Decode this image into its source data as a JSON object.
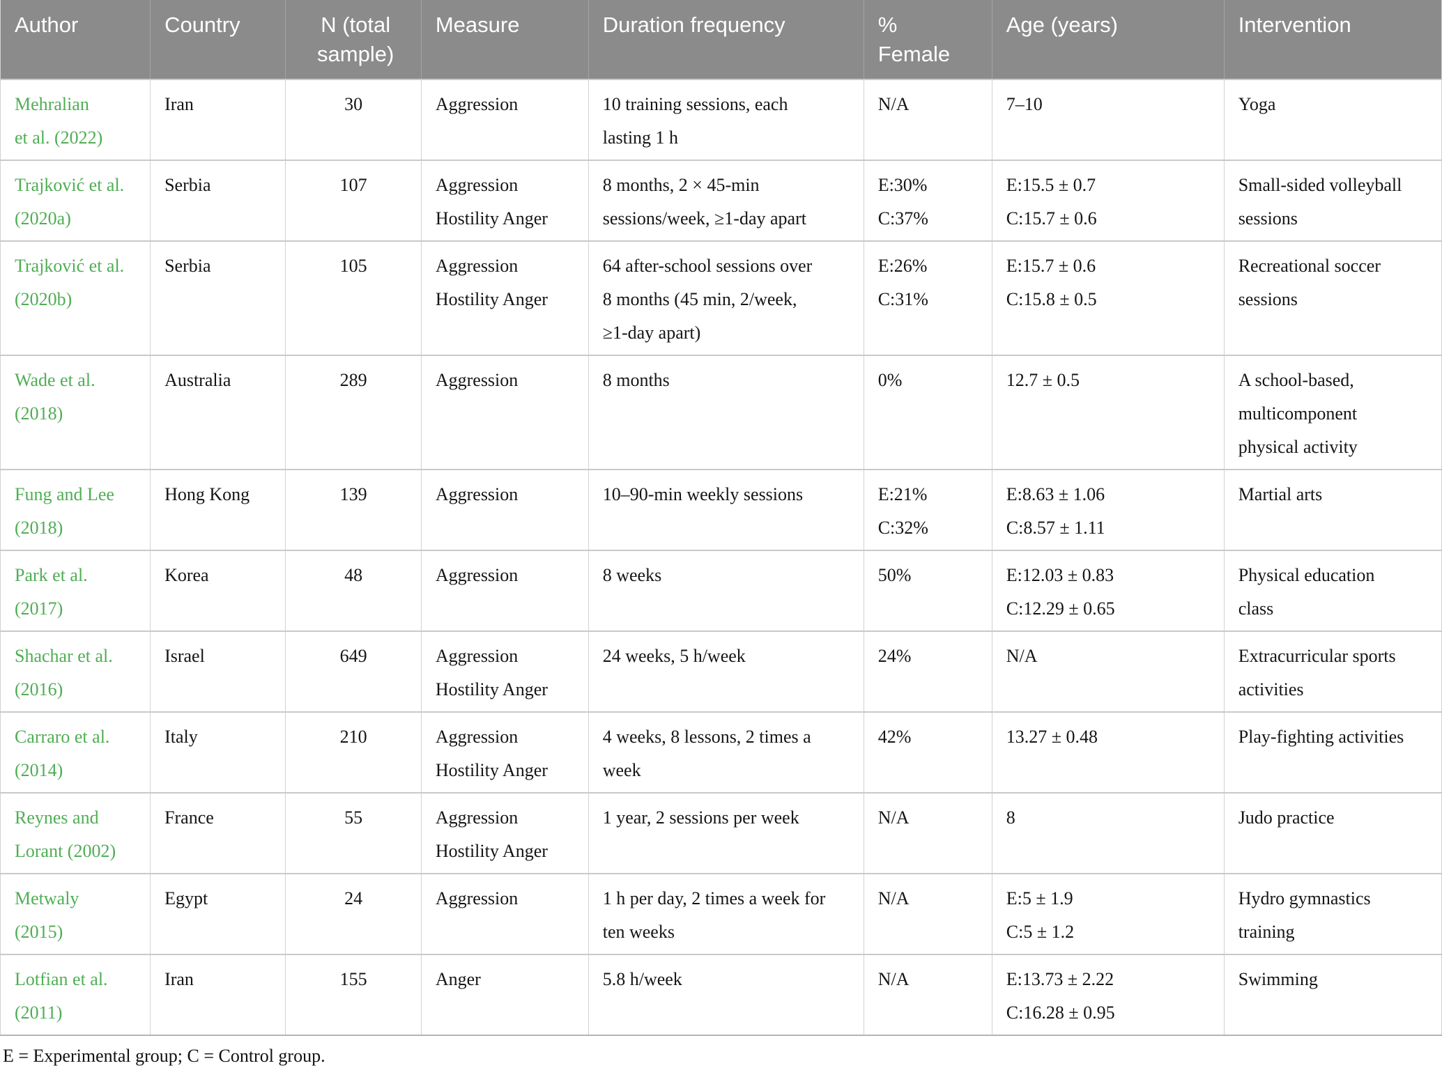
{
  "colors": {
    "header_bg": "#8b8b8b",
    "author_green": "#4fae54"
  },
  "table": {
    "headers": [
      {
        "label": "Author"
      },
      {
        "label": "Country"
      },
      {
        "label": "N (total\nsample)"
      },
      {
        "label": "Measure"
      },
      {
        "label": "Duration frequency"
      },
      {
        "label": "%\nFemale"
      },
      {
        "label": "Age (years)"
      },
      {
        "label": "Intervention"
      }
    ],
    "rows": [
      {
        "author": "Mehralian\net al. (2022)",
        "country": "Iran",
        "n": "30",
        "measure": "Aggression",
        "duration": "10 training sessions, each\nlasting 1 h",
        "female": "N/A",
        "age": "7–10",
        "intervention": "Yoga"
      },
      {
        "author": "Trajković et al.\n(2020a)",
        "country": "Serbia",
        "n": "107",
        "measure": "Aggression\nHostility Anger",
        "duration": "8 months, 2 × 45-min\nsessions/week, ≥1-day apart",
        "female": "E:30%\nC:37%",
        "age": "E:15.5 ± 0.7\nC:15.7 ± 0.6",
        "intervention": "Small-sided volleyball\nsessions"
      },
      {
        "author": "Trajković et al.\n(2020b)",
        "country": "Serbia",
        "n": "105",
        "measure": "Aggression\nHostility Anger",
        "duration": "64 after-school sessions over\n8 months (45 min, 2/week,\n≥1-day apart)",
        "female": "E:26%\nC:31%",
        "age": "E:15.7 ± 0.6\nC:15.8 ± 0.5",
        "intervention": "Recreational soccer\nsessions"
      },
      {
        "author": "Wade et al.\n(2018)",
        "country": "Australia",
        "n": "289",
        "measure": "Aggression",
        "duration": "8 months",
        "female": "0%",
        "age": "12.7 ± 0.5",
        "intervention": "A school-based,\nmulticomponent\nphysical activity"
      },
      {
        "author": "Fung and Lee\n(2018)",
        "country": "Hong Kong",
        "n": "139",
        "measure": "Aggression",
        "duration": "10–90-min weekly sessions",
        "female": "E:21%\nC:32%",
        "age": "E:8.63 ± 1.06\nC:8.57 ± 1.11",
        "intervention": "Martial arts"
      },
      {
        "author": "Park et al.\n(2017)",
        "country": "Korea",
        "n": "48",
        "measure": "Aggression",
        "duration": "8 weeks",
        "female": "50%",
        "age": "E:12.03 ± 0.83\nC:12.29 ± 0.65",
        "intervention": "Physical education\nclass"
      },
      {
        "author": "Shachar et al.\n(2016)",
        "country": "Israel",
        "n": "649",
        "measure": "Aggression\nHostility Anger",
        "duration": "24 weeks, 5 h/week",
        "female": "24%",
        "age": "N/A",
        "intervention": "Extracurricular sports\nactivities"
      },
      {
        "author": "Carraro et al.\n(2014)",
        "country": "Italy",
        "n": "210",
        "measure": "Aggression\nHostility Anger",
        "duration": "4 weeks, 8 lessons, 2 times a\nweek",
        "female": "42%",
        "age": "13.27 ± 0.48",
        "intervention": "Play-fighting activities"
      },
      {
        "author": "Reynes and\nLorant (2002)",
        "country": "France",
        "n": "55",
        "measure": "Aggression\nHostility Anger",
        "duration": "1 year, 2 sessions per week",
        "female": "N/A",
        "age": "8",
        "intervention": "Judo practice"
      },
      {
        "author": "Metwaly\n(2015)",
        "country": "Egypt",
        "n": "24",
        "measure": "Aggression",
        "duration": "1 h per day, 2 times a week for\nten weeks",
        "female": "N/A",
        "age": "E:5 ± 1.9\nC:5 ± 1.2",
        "intervention": "Hydro gymnastics\ntraining"
      },
      {
        "author": "Lotfian et al.\n(2011)",
        "country": "Iran",
        "n": "155",
        "measure": "Anger",
        "duration": "5.8 h/week",
        "female": "N/A",
        "age": "E:13.73 ± 2.22\nC:16.28 ± 0.95",
        "intervention": "Swimming"
      }
    ]
  },
  "footnote": "E = Experimental group; C = Control group."
}
